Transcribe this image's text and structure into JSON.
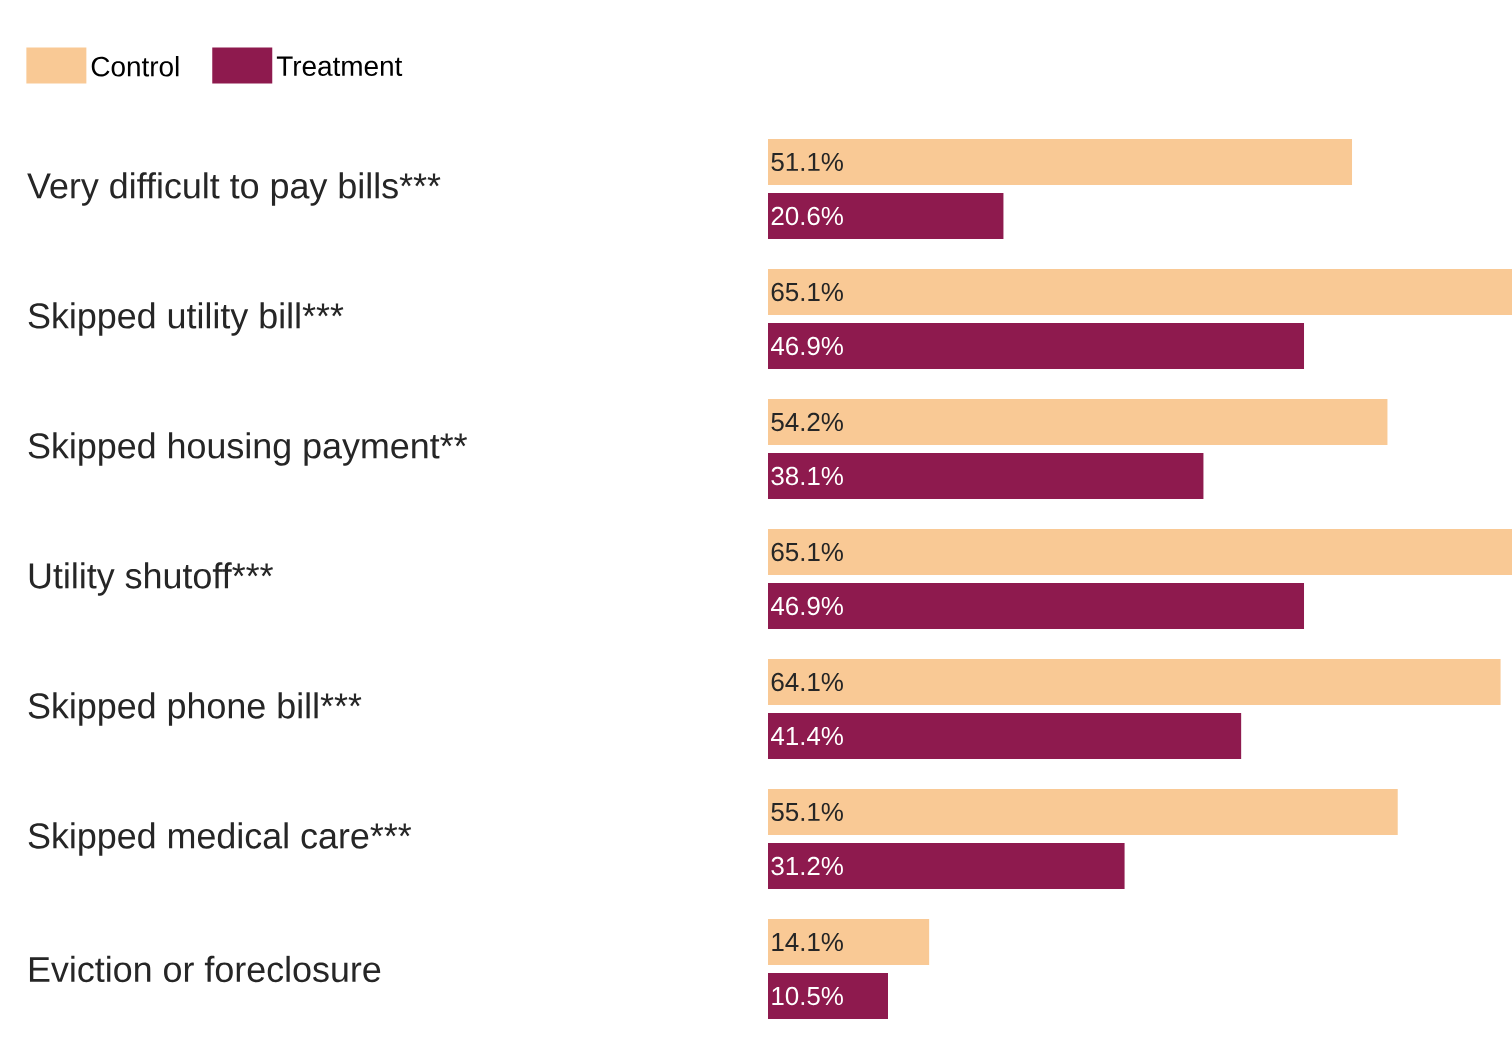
{
  "chart_data": {
    "type": "bar",
    "orientation": "horizontal",
    "legend": "top left",
    "categories": [
      "Very difficult to pay bills***",
      "Skipped utility bill***",
      "Skipped housing payment**",
      "Utility shutoff***",
      "Skipped phone bill***",
      "Skipped medical care***",
      "Eviction or foreclosure"
    ],
    "xlim": [
      0,
      65.1
    ],
    "series": [
      {
        "name": "Control",
        "color": "#f9c995",
        "values": [
          51.1,
          65.1,
          54.2,
          65.1,
          64.1,
          55.1,
          14.1
        ],
        "value_labels": [
          "51.1%",
          "65.1%",
          "54.2%",
          "65.1%",
          "64.1%",
          "55.1%",
          "14.1%"
        ]
      },
      {
        "name": "Treatment",
        "color": "#8e1a4e",
        "values": [
          20.6,
          46.9,
          38.1,
          46.9,
          41.4,
          31.2,
          10.5
        ],
        "value_labels": [
          "20.6%",
          "46.9%",
          "38.1%",
          "46.9%",
          "41.4%",
          "31.2%",
          "10.5%"
        ]
      }
    ]
  }
}
